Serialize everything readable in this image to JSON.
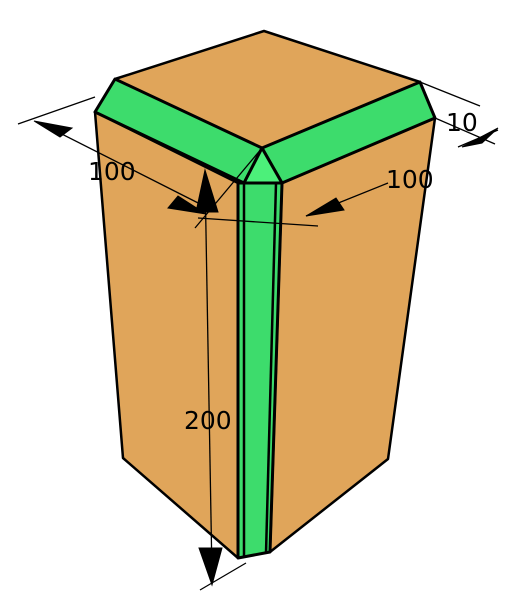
{
  "colors": {
    "body": "#E0A55A",
    "edge_band": "#3DDC6C",
    "corner_cap": "#4CF07A",
    "outline": "#000000",
    "background": "#FFFFFF"
  },
  "dimensions": {
    "width_left": "100",
    "width_right": "100",
    "height": "200",
    "band_width": "10"
  }
}
